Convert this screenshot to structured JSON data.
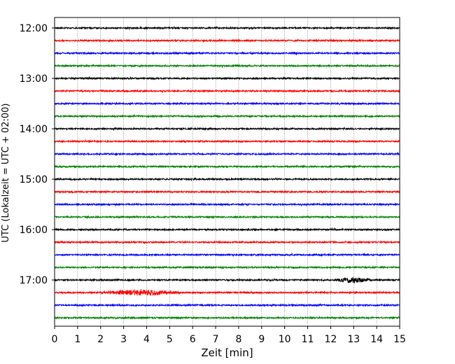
{
  "chart_data": {
    "type": "line",
    "title": "",
    "xlabel": "Zeit  [min]",
    "ylabel": "UTC (Lokalzeit = UTC + 02:00)",
    "xlim": [
      0,
      15
    ],
    "x_ticks": [
      "0",
      "1",
      "2",
      "3",
      "4",
      "5",
      "6",
      "7",
      "8",
      "9",
      "10",
      "11",
      "12",
      "13",
      "14",
      "15"
    ],
    "y_ticks": [
      "12:00",
      "13:00",
      "14:00",
      "15:00",
      "16:00",
      "17:00"
    ],
    "grid": "vertical dotted lines at each minute",
    "row_interval_minutes": 15,
    "row_colors": [
      "#000000",
      "#ff0000",
      "#0000ff",
      "#008000"
    ],
    "traces": [
      {
        "start": "12:00",
        "color": "#000000"
      },
      {
        "start": "12:15",
        "color": "#ff0000"
      },
      {
        "start": "12:30",
        "color": "#0000ff"
      },
      {
        "start": "12:45",
        "color": "#008000"
      },
      {
        "start": "13:00",
        "color": "#000000"
      },
      {
        "start": "13:15",
        "color": "#ff0000"
      },
      {
        "start": "13:30",
        "color": "#0000ff"
      },
      {
        "start": "13:45",
        "color": "#008000"
      },
      {
        "start": "14:00",
        "color": "#000000"
      },
      {
        "start": "14:15",
        "color": "#ff0000"
      },
      {
        "start": "14:30",
        "color": "#0000ff"
      },
      {
        "start": "14:45",
        "color": "#008000"
      },
      {
        "start": "15:00",
        "color": "#000000"
      },
      {
        "start": "15:15",
        "color": "#ff0000"
      },
      {
        "start": "15:30",
        "color": "#0000ff"
      },
      {
        "start": "15:45",
        "color": "#008000"
      },
      {
        "start": "16:00",
        "color": "#000000"
      },
      {
        "start": "16:15",
        "color": "#ff0000"
      },
      {
        "start": "16:30",
        "color": "#0000ff"
      },
      {
        "start": "16:45",
        "color": "#008000"
      },
      {
        "start": "17:00",
        "color": "#000000",
        "event_minutes": [
          12.2,
          13.8
        ]
      },
      {
        "start": "17:15",
        "color": "#ff0000",
        "event_minutes": [
          2.0,
          5.5
        ]
      },
      {
        "start": "17:30",
        "color": "#0000ff"
      },
      {
        "start": "17:45",
        "color": "#008000"
      }
    ]
  }
}
